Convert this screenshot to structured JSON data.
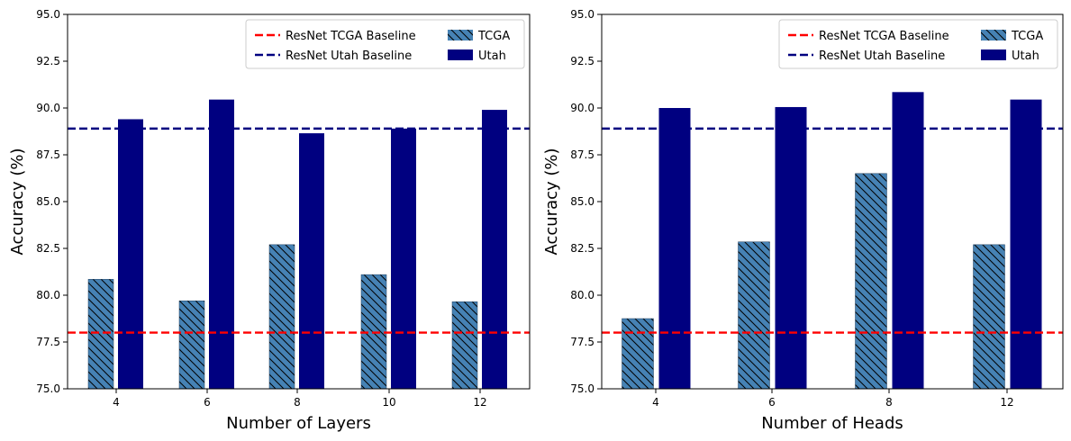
{
  "colors": {
    "tcga_bar": "#4682b4",
    "utah_bar": "#000080",
    "tcga_baseline": "#ff0000",
    "utah_baseline": "#000080",
    "hatch": "#000000"
  },
  "chart_data": [
    {
      "type": "bar",
      "title": "",
      "xlabel": "Number of Layers",
      "ylabel": "Accuracy (%)",
      "ylim": [
        75.0,
        95.0
      ],
      "yticks": [
        "75.0",
        "77.5",
        "80.0",
        "82.5",
        "85.0",
        "87.5",
        "90.0",
        "92.5",
        "95.0"
      ],
      "categories": [
        "4",
        "6",
        "8",
        "10",
        "12"
      ],
      "series": [
        {
          "name": "TCGA",
          "values": [
            80.85,
            79.7,
            82.7,
            81.1,
            79.65
          ]
        },
        {
          "name": "Utah",
          "values": [
            89.4,
            90.45,
            88.65,
            88.9,
            89.9
          ]
        }
      ],
      "baselines": [
        {
          "name": "ResNet TCGA Baseline",
          "value": 78.0
        },
        {
          "name": "ResNet Utah Baseline",
          "value": 88.9
        }
      ],
      "legend": {
        "position": "top-right",
        "entries": [
          "ResNet TCGA Baseline",
          "ResNet Utah Baseline",
          "TCGA",
          "Utah"
        ]
      }
    },
    {
      "type": "bar",
      "title": "",
      "xlabel": "Number of Heads",
      "ylabel": "Accuracy (%)",
      "ylim": [
        75.0,
        95.0
      ],
      "yticks": [
        "75.0",
        "77.5",
        "80.0",
        "82.5",
        "85.0",
        "87.5",
        "90.0",
        "92.5",
        "95.0"
      ],
      "categories": [
        "4",
        "6",
        "8",
        "12"
      ],
      "series": [
        {
          "name": "TCGA",
          "values": [
            78.75,
            82.85,
            86.5,
            82.7
          ]
        },
        {
          "name": "Utah",
          "values": [
            90.0,
            90.05,
            90.85,
            90.45
          ]
        }
      ],
      "baselines": [
        {
          "name": "ResNet TCGA Baseline",
          "value": 78.0
        },
        {
          "name": "ResNet Utah Baseline",
          "value": 88.9
        }
      ],
      "legend": {
        "position": "top-right",
        "entries": [
          "ResNet TCGA Baseline",
          "ResNet Utah Baseline",
          "TCGA",
          "Utah"
        ]
      }
    }
  ]
}
